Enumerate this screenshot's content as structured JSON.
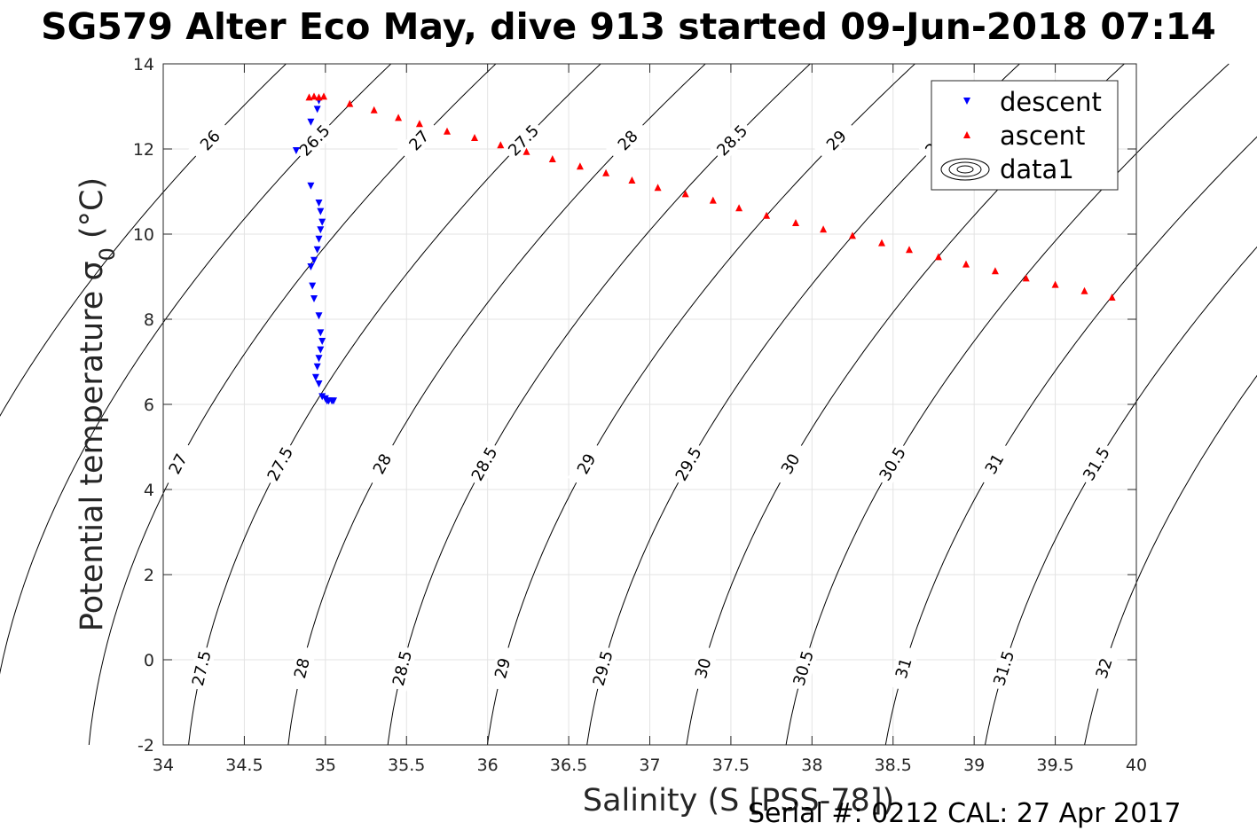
{
  "chart_data": {
    "type": "scatter",
    "title": "SG579 Alter Eco May, dive 913 started 09-Jun-2018 07:14",
    "xlabel": "Salinity (S [PSS-78])",
    "ylabel_main": "Potential temperature σ",
    "ylabel_sub": "0",
    "ylabel_unit": "(°C)",
    "xlim": [
      34,
      40
    ],
    "ylim": [
      -2,
      14
    ],
    "x_ticks": [
      "34",
      "34.5",
      "35",
      "35.5",
      "36",
      "36.5",
      "37",
      "37.5",
      "38",
      "38.5",
      "39",
      "39.5",
      "40"
    ],
    "y_ticks": [
      "-2",
      "0",
      "2",
      "4",
      "6",
      "8",
      "10",
      "12",
      "14"
    ],
    "grid": true,
    "legend_placement": "top-right",
    "legend": [
      "descent",
      "ascent",
      "data1"
    ],
    "series": [
      {
        "name": "descent",
        "color": "#0000ff",
        "marker": "triangle-down",
        "x": [
          34.96,
          34.95,
          34.91,
          34.82,
          34.91,
          34.96,
          34.97,
          34.98,
          34.97,
          34.96,
          34.95,
          34.93,
          34.91,
          34.92,
          34.93,
          34.96,
          34.97,
          34.98,
          34.97,
          34.96,
          34.95,
          34.94,
          34.96,
          34.98,
          35.0,
          35.01,
          35.02,
          35.04,
          35.05
        ],
        "y": [
          13.15,
          12.95,
          12.65,
          11.98,
          11.15,
          10.75,
          10.55,
          10.3,
          10.12,
          9.9,
          9.65,
          9.4,
          9.25,
          8.8,
          8.5,
          8.1,
          7.7,
          7.5,
          7.3,
          7.1,
          6.9,
          6.65,
          6.5,
          6.2,
          6.15,
          6.1,
          6.1,
          6.1,
          6.1
        ]
      },
      {
        "name": "ascent",
        "color": "#ff0000",
        "marker": "triangle-up",
        "x": [
          34.9,
          34.93,
          34.96,
          34.99,
          35.15,
          35.3,
          35.45,
          35.58,
          35.75,
          35.92,
          36.08,
          36.24,
          36.4,
          36.57,
          36.73,
          36.89,
          37.05,
          37.22,
          37.39,
          37.55,
          37.72,
          37.9,
          38.07,
          38.25,
          38.43,
          38.6,
          38.78,
          38.95,
          39.13,
          39.32,
          39.5,
          39.68,
          39.85
        ],
        "y": [
          13.2,
          13.22,
          13.2,
          13.22,
          13.05,
          12.9,
          12.72,
          12.58,
          12.4,
          12.25,
          12.08,
          11.92,
          11.75,
          11.58,
          11.42,
          11.25,
          11.08,
          10.93,
          10.78,
          10.6,
          10.42,
          10.25,
          10.1,
          9.95,
          9.78,
          9.62,
          9.45,
          9.28,
          9.12,
          8.95,
          8.8,
          8.65,
          8.5
        ]
      }
    ],
    "contours": {
      "series_name": "data1",
      "color": "#000000",
      "levels": [
        26,
        26.5,
        27,
        27.5,
        28,
        28.5,
        29,
        29.5,
        30,
        30.5,
        31,
        31.5,
        32
      ],
      "level_labels": [
        "26",
        "26.5",
        "27",
        "27.5",
        "28",
        "28.5",
        "29",
        "29.5",
        "30",
        "30.5",
        "31",
        "31.5",
        "32"
      ]
    }
  },
  "footer": {
    "serial": "Serial #: 0212  CAL: 27 Apr 2017"
  }
}
